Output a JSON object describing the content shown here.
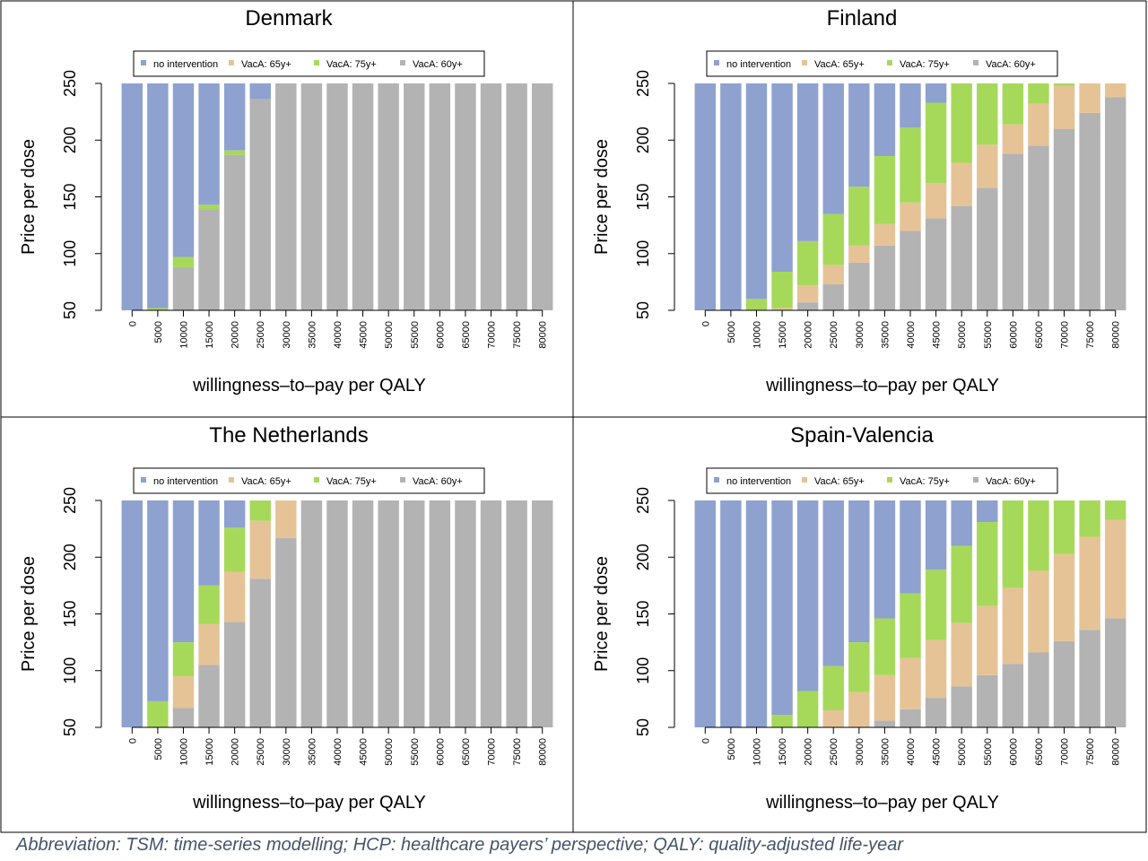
{
  "caption": "Abbreviation: TSM: time-series modelling; HCP: healthcare payers’ perspective; QALY: quality-adjusted life-year",
  "colors": {
    "no_intervention": "#8ea1cf",
    "vaca_65": "#e6c396",
    "vaca_75": "#a6d95a",
    "vaca_60": "#b3b3b3"
  },
  "chart_data": [
    {
      "type": "bar",
      "stacked": true,
      "title": "Denmark",
      "xlabel": "willingness–to–pay per QALY",
      "ylabel": "Price per dose",
      "ylim": [
        50,
        250
      ],
      "yticks": [
        50,
        100,
        150,
        200,
        250
      ],
      "legend": {
        "placement": "top",
        "entries": [
          "no intervention",
          "VacA: 65y+",
          "VacA: 75y+",
          "VacA: 60y+"
        ]
      },
      "categories": [
        "0",
        "5000",
        "10000",
        "15000",
        "20000",
        "25000",
        "30000",
        "35000",
        "40000",
        "45000",
        "50000",
        "55000",
        "60000",
        "65000",
        "70000",
        "75000",
        "80000"
      ],
      "optimal_boundaries": {
        "VacA: 60y+": [
          50,
          50,
          88,
          139,
          187,
          236,
          250,
          250,
          250,
          250,
          250,
          250,
          250,
          250,
          250,
          250,
          250
        ],
        "VacA: 65y+": [
          50,
          50,
          88,
          139,
          187,
          236,
          250,
          250,
          250,
          250,
          250,
          250,
          250,
          250,
          250,
          250,
          250
        ],
        "VacA: 75y+": [
          50,
          52,
          97,
          143,
          191,
          236,
          250,
          250,
          250,
          250,
          250,
          250,
          250,
          250,
          250,
          250,
          250
        ]
      }
    },
    {
      "type": "bar",
      "stacked": true,
      "title": "Finland",
      "xlabel": "willingness–to–pay per QALY",
      "ylabel": "Price per dose",
      "ylim": [
        50,
        250
      ],
      "yticks": [
        50,
        100,
        150,
        200,
        250
      ],
      "legend": {
        "placement": "top",
        "entries": [
          "no intervention",
          "VacA: 65y+",
          "VacA: 75y+",
          "VacA: 60y+"
        ]
      },
      "categories": [
        "0",
        "5000",
        "10000",
        "15000",
        "20000",
        "25000",
        "30000",
        "35000",
        "40000",
        "45000",
        "50000",
        "55000",
        "60000",
        "65000",
        "70000",
        "75000",
        "80000"
      ],
      "optimal_boundaries": {
        "VacA: 60y+": [
          50,
          50,
          50,
          50,
          57,
          73,
          92,
          107,
          120,
          131,
          142,
          158,
          188,
          195,
          210,
          224,
          238
        ],
        "VacA: 65y+": [
          50,
          50,
          50,
          52,
          72,
          90,
          107,
          126,
          145,
          162,
          180,
          196,
          214,
          232,
          248,
          250,
          250
        ],
        "VacA: 75y+": [
          50,
          50,
          60,
          84,
          111,
          135,
          159,
          186,
          211,
          233,
          250,
          250,
          250,
          250,
          250,
          250,
          250
        ]
      }
    },
    {
      "type": "bar",
      "stacked": true,
      "title": "The Netherlands",
      "xlabel": "willingness–to–pay per QALY",
      "ylabel": "Price per dose",
      "ylim": [
        50,
        250
      ],
      "yticks": [
        50,
        100,
        150,
        200,
        250
      ],
      "legend": {
        "placement": "top",
        "entries": [
          "no intervention",
          "VacA: 65y+",
          "VacA: 75y+",
          "VacA: 60y+"
        ]
      },
      "categories": [
        "0",
        "5000",
        "10000",
        "15000",
        "20000",
        "25000",
        "30000",
        "35000",
        "40000",
        "45000",
        "50000",
        "55000",
        "60000",
        "65000",
        "70000",
        "75000",
        "80000"
      ],
      "optimal_boundaries": {
        "VacA: 60y+": [
          50,
          50,
          67,
          105,
          143,
          181,
          217,
          250,
          250,
          250,
          250,
          250,
          250,
          250,
          250,
          250,
          250
        ],
        "VacA: 65y+": [
          50,
          50,
          95,
          141,
          187,
          232,
          250,
          250,
          250,
          250,
          250,
          250,
          250,
          250,
          250,
          250,
          250
        ],
        "VacA: 75y+": [
          50,
          73,
          125,
          175,
          226,
          250,
          250,
          250,
          250,
          250,
          250,
          250,
          250,
          250,
          250,
          250,
          250
        ]
      }
    },
    {
      "type": "bar",
      "stacked": true,
      "title": "Spain-Valencia",
      "xlabel": "willingness–to–pay per QALY",
      "ylabel": "Price per dose",
      "ylim": [
        50,
        250
      ],
      "yticks": [
        50,
        100,
        150,
        200,
        250
      ],
      "legend": {
        "placement": "top",
        "entries": [
          "no intervention",
          "VacA: 65y+",
          "VacA: 75y+",
          "VacA: 60y+"
        ]
      },
      "categories": [
        "0",
        "5000",
        "10000",
        "15000",
        "20000",
        "25000",
        "30000",
        "35000",
        "40000",
        "45000",
        "50000",
        "55000",
        "60000",
        "65000",
        "70000",
        "75000",
        "80000"
      ],
      "optimal_boundaries": {
        "VacA: 60y+": [
          50,
          50,
          50,
          50,
          50,
          50,
          50,
          56,
          66,
          76,
          86,
          96,
          106,
          116,
          126,
          136,
          146
        ],
        "VacA: 65y+": [
          50,
          50,
          50,
          50,
          50,
          65,
          81,
          96,
          111,
          127,
          142,
          157,
          173,
          188,
          203,
          218,
          233
        ],
        "VacA: 75y+": [
          50,
          50,
          50,
          61,
          82,
          104,
          125,
          146,
          168,
          189,
          210,
          231,
          250,
          250,
          250,
          250,
          250
        ]
      }
    }
  ]
}
